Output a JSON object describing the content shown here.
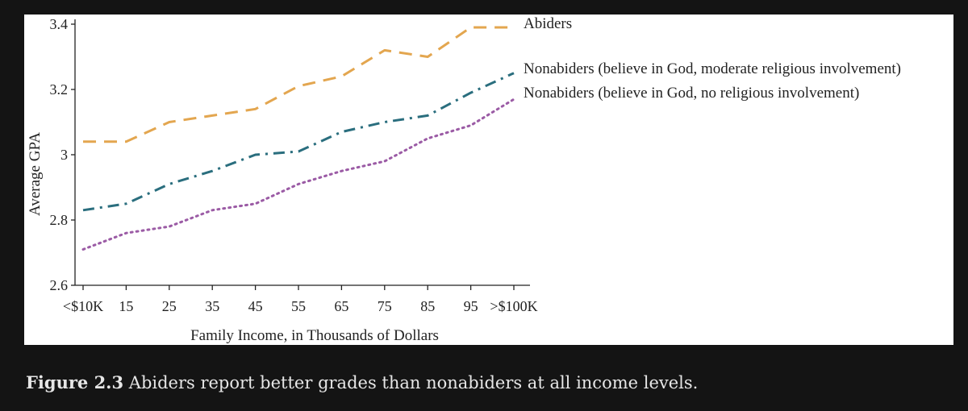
{
  "chart_data": {
    "type": "line",
    "title": "",
    "xlabel": "Family Income, in Thousands of Dollars",
    "ylabel": "Average GPA",
    "categories": [
      "<$10K",
      "15",
      "25",
      "35",
      "45",
      "55",
      "65",
      "75",
      "85",
      "95",
      ">$100K"
    ],
    "ylim": [
      2.6,
      3.4
    ],
    "yticks": [
      "2.6",
      "2.8",
      "3",
      "3.2",
      "3.4"
    ],
    "ytick_values": [
      2.6,
      2.8,
      3.0,
      3.2,
      3.4
    ],
    "grid": false,
    "legend_position": "right",
    "series": [
      {
        "name": "Abiders",
        "color": "#e3a64f",
        "style": "dashed",
        "values": [
          3.04,
          3.04,
          3.1,
          3.12,
          3.14,
          3.21,
          3.24,
          3.32,
          3.3,
          3.39,
          3.39
        ]
      },
      {
        "name": "Nonabiders (believe in God, moderate religious involvement)",
        "color": "#2a6e7e",
        "style": "dashdot",
        "values": [
          2.83,
          2.85,
          2.91,
          2.95,
          3.0,
          3.01,
          3.07,
          3.1,
          3.12,
          3.19,
          3.25
        ]
      },
      {
        "name": "Nonabiders (believe in God, no religious involvement)",
        "color": "#9b5ba5",
        "style": "dotted",
        "values": [
          2.71,
          2.76,
          2.78,
          2.83,
          2.85,
          2.91,
          2.95,
          2.98,
          3.05,
          3.09,
          3.17
        ]
      }
    ]
  },
  "caption": {
    "label": "Figure 2.3",
    "text": " Abiders report better grades than nonabiders at all income levels."
  }
}
